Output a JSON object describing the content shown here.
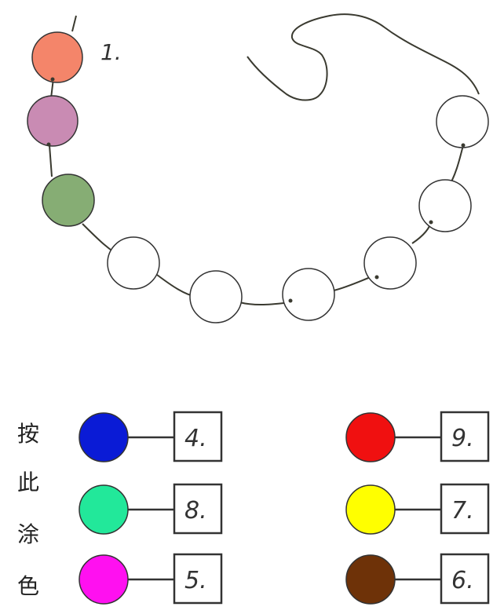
{
  "necklace": {
    "first_label": "1.",
    "beads": [
      {
        "fill": "#f4856a"
      },
      {
        "fill": "#c98bb3"
      },
      {
        "fill": "#86ad74"
      },
      {
        "fill": "#ffffff"
      },
      {
        "fill": "#ffffff"
      },
      {
        "fill": "#ffffff"
      },
      {
        "fill": "#ffffff"
      },
      {
        "fill": "#ffffff"
      },
      {
        "fill": "#ffffff"
      }
    ]
  },
  "legend": {
    "instruction_chars": [
      "按",
      "此",
      "涂",
      "色"
    ],
    "left_column": [
      {
        "color": "#0a1bd6",
        "number": "4."
      },
      {
        "color": "#22e89a",
        "number": "8."
      },
      {
        "color": "#ff10f0",
        "number": "5."
      }
    ],
    "right_column": [
      {
        "color": "#f01010",
        "number": "9."
      },
      {
        "color": "#ffff00",
        "number": "7."
      },
      {
        "color": "#6e3208",
        "number": "6."
      }
    ]
  },
  "colors": {
    "outline": "#333333",
    "string": "#3a3a30"
  }
}
